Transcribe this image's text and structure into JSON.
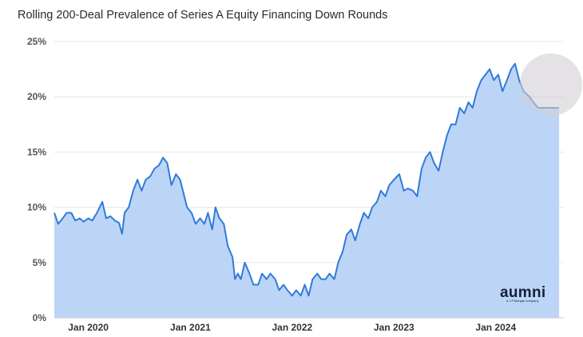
{
  "title": "Rolling 200-Deal Prevalence of Series A Equity Financing Down Rounds",
  "brand": {
    "name": "aumni",
    "tagline": "a J.P.Morgan company",
    "color": "#161f3a"
  },
  "colors": {
    "line": "#2f7bd9",
    "fill": "#bcd5f7",
    "grid": "#e6e6e6",
    "highlight": "#d2cfd4"
  },
  "chart_data": {
    "type": "area",
    "title": "Rolling 200-Deal Prevalence of Series A Equity Financing Down Rounds",
    "xlabel": "",
    "ylabel": "",
    "ylim": [
      0,
      25
    ],
    "y_ticks": [
      "0%",
      "5%",
      "10%",
      "15%",
      "20%",
      "25%"
    ],
    "x_ticks": [
      "Jan 2020",
      "Jan 2021",
      "Jan 2022",
      "Jan 2023",
      "Jan 2024"
    ],
    "x_range": [
      "2019-09-01",
      "2024-09-01"
    ],
    "grid": true,
    "series": [
      {
        "points": [
          [
            "2019-09-01",
            9.5
          ],
          [
            "2019-09-15",
            8.5
          ],
          [
            "2019-10-01",
            9.0
          ],
          [
            "2019-10-15",
            9.5
          ],
          [
            "2019-11-01",
            9.5
          ],
          [
            "2019-11-15",
            8.8
          ],
          [
            "2019-12-01",
            9.0
          ],
          [
            "2019-12-15",
            8.7
          ],
          [
            "2020-01-01",
            9.0
          ],
          [
            "2020-01-15",
            8.8
          ],
          [
            "2020-02-01",
            9.5
          ],
          [
            "2020-02-20",
            10.5
          ],
          [
            "2020-03-05",
            9.0
          ],
          [
            "2020-03-20",
            9.2
          ],
          [
            "2020-04-05",
            8.8
          ],
          [
            "2020-04-20",
            8.6
          ],
          [
            "2020-05-01",
            7.6
          ],
          [
            "2020-05-10",
            9.5
          ],
          [
            "2020-05-25",
            10.0
          ],
          [
            "2020-06-10",
            11.5
          ],
          [
            "2020-06-25",
            12.5
          ],
          [
            "2020-07-10",
            11.5
          ],
          [
            "2020-07-25",
            12.5
          ],
          [
            "2020-08-10",
            12.8
          ],
          [
            "2020-08-25",
            13.5
          ],
          [
            "2020-09-10",
            13.8
          ],
          [
            "2020-09-25",
            14.5
          ],
          [
            "2020-10-10",
            14.0
          ],
          [
            "2020-10-25",
            12.0
          ],
          [
            "2020-11-10",
            13.0
          ],
          [
            "2020-11-25",
            12.5
          ],
          [
            "2020-12-05",
            11.5
          ],
          [
            "2020-12-20",
            10.0
          ],
          [
            "2021-01-05",
            9.5
          ],
          [
            "2021-01-20",
            8.5
          ],
          [
            "2021-02-05",
            9.0
          ],
          [
            "2021-02-20",
            8.5
          ],
          [
            "2021-03-05",
            9.5
          ],
          [
            "2021-03-20",
            8.0
          ],
          [
            "2021-04-01",
            10.0
          ],
          [
            "2021-04-15",
            9.0
          ],
          [
            "2021-05-01",
            8.5
          ],
          [
            "2021-05-15",
            6.5
          ],
          [
            "2021-06-01",
            5.5
          ],
          [
            "2021-06-10",
            3.5
          ],
          [
            "2021-06-20",
            4.0
          ],
          [
            "2021-07-01",
            3.5
          ],
          [
            "2021-07-15",
            5.0
          ],
          [
            "2021-08-01",
            4.0
          ],
          [
            "2021-08-15",
            3.0
          ],
          [
            "2021-09-01",
            3.0
          ],
          [
            "2021-09-15",
            4.0
          ],
          [
            "2021-10-01",
            3.5
          ],
          [
            "2021-10-15",
            4.0
          ],
          [
            "2021-11-01",
            3.5
          ],
          [
            "2021-11-15",
            2.5
          ],
          [
            "2021-12-01",
            3.0
          ],
          [
            "2021-12-15",
            2.5
          ],
          [
            "2022-01-01",
            2.0
          ],
          [
            "2022-01-15",
            2.5
          ],
          [
            "2022-02-01",
            2.0
          ],
          [
            "2022-02-15",
            3.0
          ],
          [
            "2022-03-01",
            2.0
          ],
          [
            "2022-03-15",
            3.5
          ],
          [
            "2022-04-01",
            4.0
          ],
          [
            "2022-04-15",
            3.5
          ],
          [
            "2022-05-01",
            3.5
          ],
          [
            "2022-05-15",
            4.0
          ],
          [
            "2022-06-01",
            3.5
          ],
          [
            "2022-06-15",
            5.0
          ],
          [
            "2022-07-01",
            6.0
          ],
          [
            "2022-07-15",
            7.5
          ],
          [
            "2022-08-01",
            8.0
          ],
          [
            "2022-08-15",
            7.0
          ],
          [
            "2022-09-01",
            8.5
          ],
          [
            "2022-09-15",
            9.5
          ],
          [
            "2022-10-01",
            9.0
          ],
          [
            "2022-10-15",
            10.0
          ],
          [
            "2022-11-01",
            10.5
          ],
          [
            "2022-11-15",
            11.5
          ],
          [
            "2022-12-01",
            11.0
          ],
          [
            "2022-12-15",
            12.0
          ],
          [
            "2023-01-01",
            12.5
          ],
          [
            "2023-01-20",
            13.0
          ],
          [
            "2023-02-05",
            11.5
          ],
          [
            "2023-02-20",
            11.7
          ],
          [
            "2023-03-10",
            11.5
          ],
          [
            "2023-03-25",
            11.0
          ],
          [
            "2023-04-10",
            13.5
          ],
          [
            "2023-04-25",
            14.5
          ],
          [
            "2023-05-10",
            15.0
          ],
          [
            "2023-05-25",
            14.0
          ],
          [
            "2023-06-10",
            13.3
          ],
          [
            "2023-06-25",
            15.0
          ],
          [
            "2023-07-10",
            16.5
          ],
          [
            "2023-07-25",
            17.5
          ],
          [
            "2023-08-10",
            17.5
          ],
          [
            "2023-08-25",
            19.0
          ],
          [
            "2023-09-10",
            18.5
          ],
          [
            "2023-09-25",
            19.5
          ],
          [
            "2023-10-10",
            19.0
          ],
          [
            "2023-10-25",
            20.5
          ],
          [
            "2023-11-10",
            21.5
          ],
          [
            "2023-11-25",
            22.0
          ],
          [
            "2023-12-10",
            22.5
          ],
          [
            "2023-12-25",
            21.5
          ],
          [
            "2024-01-10",
            22.0
          ],
          [
            "2024-01-25",
            20.5
          ],
          [
            "2024-02-10",
            21.5
          ],
          [
            "2024-02-25",
            22.5
          ],
          [
            "2024-03-10",
            23.0
          ],
          [
            "2024-03-25",
            21.5
          ],
          [
            "2024-04-10",
            20.5
          ],
          [
            "2024-05-01",
            20.0
          ],
          [
            "2024-05-15",
            19.5
          ],
          [
            "2024-06-01",
            19.0
          ],
          [
            "2024-07-01",
            19.0
          ],
          [
            "2024-08-15",
            19.0
          ]
        ]
      }
    ]
  }
}
